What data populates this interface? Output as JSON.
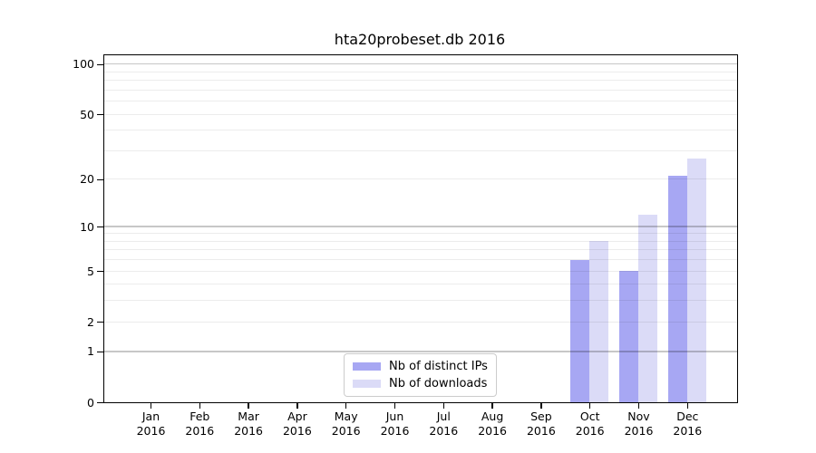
{
  "chart_data": {
    "type": "bar",
    "title": "hta20probeset.db 2016",
    "x_categories": [
      "Jan",
      "Feb",
      "Mar",
      "Apr",
      "May",
      "Jun",
      "Jul",
      "Aug",
      "Sep",
      "Oct",
      "Nov",
      "Dec"
    ],
    "x_year": "2016",
    "series": [
      {
        "name": "Nb of distinct IPs",
        "color": "#a7a7f3",
        "values": [
          0,
          0,
          0,
          0,
          0,
          0,
          0,
          0,
          0,
          6,
          5,
          21
        ]
      },
      {
        "name": "Nb of downloads",
        "color": "#dbdbf7",
        "values": [
          0,
          0,
          0,
          0,
          0,
          0,
          0,
          0,
          0,
          8,
          12,
          27
        ]
      }
    ],
    "yscale": "log1p",
    "ylim": [
      0,
      113
    ],
    "y_tick_labels": [
      0,
      1,
      2,
      5,
      10,
      20,
      50,
      100
    ],
    "y_grid_strong": [
      1,
      10,
      100
    ],
    "y_grid_light": [
      2,
      3,
      4,
      5,
      6,
      7,
      8,
      9,
      20,
      30,
      40,
      50,
      60,
      70,
      80,
      90
    ],
    "grid": true,
    "legend_position": "bottom-center"
  },
  "colors": {
    "background": "#ffffff",
    "axis": "#000000",
    "grid_strong": "#c7c7c7",
    "grid_light": "#ededed",
    "legend_border": "#cccccc",
    "bar_distinct_ips": "#a7a7f3",
    "bar_downloads": "#dbdbf7"
  }
}
